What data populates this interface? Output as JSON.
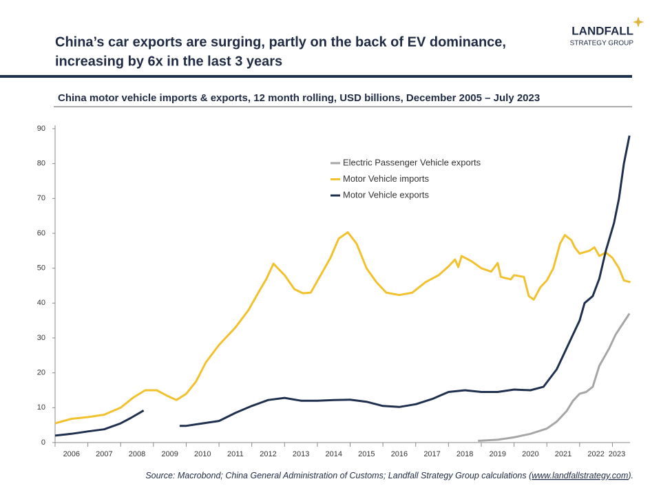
{
  "logo": {
    "name": "LANDFALL",
    "tagline": "STRATEGY GROUP"
  },
  "chart_data": {
    "type": "line",
    "title": [
      "China’s car exports are surging, partly on the back of EV dominance,",
      "increasing by 6x in the last 3 years"
    ],
    "subtitle": "China motor vehicle imports & exports, 12 month rolling, USD billions, December 2005 – July 2023",
    "source": {
      "text": "Source: Macrobond; China General Administration of Customs; Landfall Strategy Group calculations (",
      "link": "www.landfallstrategy.com",
      "end": ")."
    },
    "xlim": [
      2006,
      2023.6
    ],
    "xticks": [
      2006,
      2007,
      2008,
      2009,
      2010,
      2011,
      2012,
      2013,
      2014,
      2015,
      2016,
      2017,
      2018,
      2019,
      2020,
      2021,
      2022,
      2023
    ],
    "ylim": [
      0,
      90
    ],
    "yticks": [
      0,
      10,
      20,
      30,
      40,
      50,
      60,
      70,
      80,
      90
    ],
    "grid": false,
    "legend": "top-center",
    "series": [
      {
        "name": "Electric Passenger Vehicle exports",
        "color": "#a6a6a6",
        "x": [
          2018.9,
          2019.5,
          2020.0,
          2020.5,
          2021.0,
          2021.3,
          2021.6,
          2021.8,
          2022.0,
          2022.2,
          2022.4,
          2022.6,
          2022.9,
          2023.1,
          2023.52
        ],
        "values": [
          0.5,
          0.8,
          1.5,
          2.5,
          4,
          6,
          9,
          12,
          14,
          14.5,
          16,
          22,
          27,
          31,
          37
        ]
      },
      {
        "name": "Motor Vehicle imports",
        "color": "#f2c12e",
        "x": [
          2006.0,
          2006.5,
          2007.0,
          2007.5,
          2008.0,
          2008.4,
          2008.75,
          2009.1,
          2009.4,
          2009.7,
          2010.0,
          2010.3,
          2010.6,
          2011.0,
          2011.5,
          2011.9,
          2012.2,
          2012.45,
          2012.66,
          2013.0,
          2013.3,
          2013.56,
          2013.8,
          2014.1,
          2014.4,
          2014.65,
          2014.93,
          2015.2,
          2015.5,
          2015.8,
          2016.1,
          2016.5,
          2016.9,
          2017.3,
          2017.7,
          2018.0,
          2018.2,
          2018.3,
          2018.4,
          2018.7,
          2019.0,
          2019.3,
          2019.5,
          2019.6,
          2019.9,
          2020.0,
          2020.3,
          2020.45,
          2020.6,
          2020.8,
          2021.0,
          2021.2,
          2021.4,
          2021.55,
          2021.75,
          2021.85,
          2022.0,
          2022.3,
          2022.45,
          2022.6,
          2022.8,
          2023.0,
          2023.2,
          2023.35,
          2023.55
        ],
        "values": [
          5.5,
          6.8,
          7.3,
          8,
          10,
          13,
          15,
          15,
          13.5,
          12.2,
          14,
          17.5,
          23,
          28,
          33,
          38,
          43,
          47,
          51.3,
          48,
          44,
          42.8,
          43,
          48,
          53,
          58.5,
          60.3,
          57,
          50,
          46,
          43,
          42.3,
          43,
          46,
          48,
          50.5,
          52.5,
          50.3,
          53.5,
          52,
          50,
          49,
          51.5,
          47.5,
          46.8,
          48,
          47.5,
          42,
          41,
          44.5,
          46.5,
          50,
          57,
          59.5,
          58,
          56,
          54.2,
          55,
          56,
          53.5,
          54.5,
          53,
          50,
          46.5,
          46
        ]
      },
      {
        "name": "Motor Vehicle exports",
        "color": "#1f2f4e",
        "x": [
          2006.0,
          2006.5,
          2007.0,
          2007.5,
          2008.0,
          2008.3,
          2008.7,
          2009.2,
          2009.8,
          2010.0,
          2010.5,
          2011.0,
          2011.5,
          2012.0,
          2012.5,
          2013.0,
          2013.5,
          2014.0,
          2014.5,
          2015.0,
          2015.5,
          2016.0,
          2016.5,
          2017.0,
          2017.5,
          2018.0,
          2018.5,
          2019.0,
          2019.5,
          2020.0,
          2020.5,
          2020.9,
          2021.3,
          2021.55,
          2021.8,
          2022.0,
          2022.15,
          2022.4,
          2022.6,
          2022.8,
          2023.05,
          2023.2,
          2023.35,
          2023.52
        ],
        "values": [
          2,
          2.5,
          3.2,
          3.8,
          5.5,
          7,
          9.2,
          null,
          4.8,
          4.8,
          5.5,
          6.2,
          8.5,
          10.5,
          12.2,
          12.8,
          12,
          12,
          12.2,
          12.3,
          11.7,
          10.5,
          10.2,
          11,
          12.5,
          14.5,
          15,
          14.5,
          14.5,
          15.2,
          15,
          16,
          21,
          26,
          31,
          35,
          40,
          42,
          47,
          55,
          63,
          70,
          80,
          88
        ]
      }
    ]
  }
}
